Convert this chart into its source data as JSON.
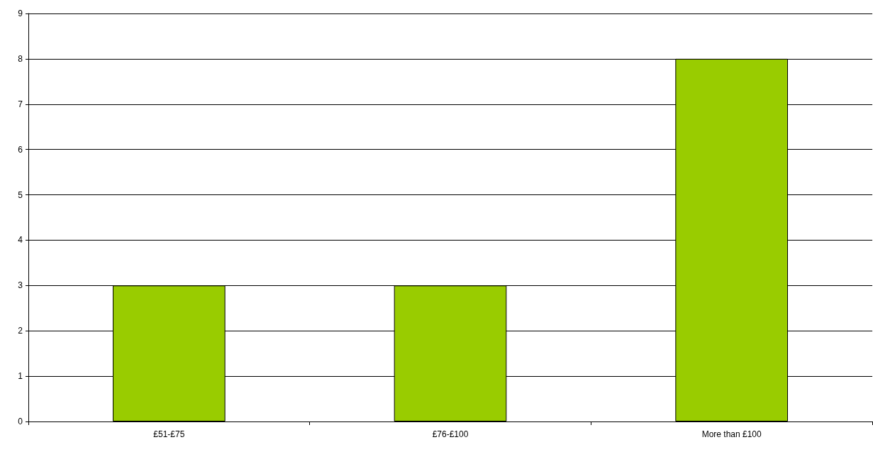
{
  "chart_data": {
    "type": "bar",
    "categories": [
      "£51-£75",
      "£76-£100",
      "More than £100"
    ],
    "values": [
      3,
      3,
      8
    ],
    "color": "#99cc00",
    "ylim": [
      0,
      9
    ],
    "yticks": [
      0,
      1,
      2,
      3,
      4,
      5,
      6,
      7,
      8,
      9
    ],
    "grid": "y"
  }
}
